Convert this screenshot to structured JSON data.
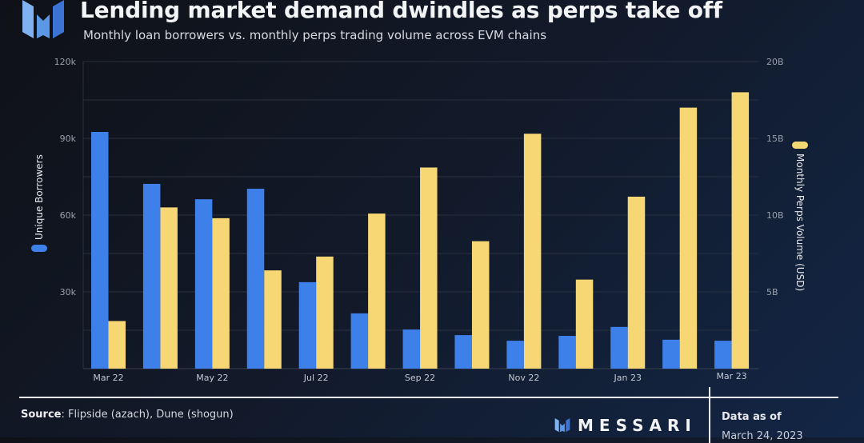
{
  "header": {
    "title": "Lending market demand dwindles as perps take off",
    "subtitle": "Monthly loan borrowers vs. monthly perps trading volume across EVM chains"
  },
  "footer": {
    "source_label": "Source",
    "source_text": ": Flipside (azach), Dune (shogun)",
    "brand": "MESSARI",
    "data_as_of_label": "Data as of",
    "data_as_of_date": "March 24, 2023"
  },
  "colors": {
    "borrowers": "#3d80ea",
    "perps": "#f7d774",
    "grid": "#2a3040",
    "tick": "#9aa1ad"
  },
  "chart_data": {
    "type": "bar",
    "title": "Lending market demand dwindles as perps take off",
    "subtitle": "Monthly loan borrowers vs. monthly perps trading volume across EVM chains",
    "categories": [
      "Mar 22",
      "Apr 22",
      "May 22",
      "Jun 22",
      "Jul 22",
      "Aug 22",
      "Sep 22",
      "Oct 22",
      "Nov 22",
      "Dec 22",
      "Jan 23",
      "Feb 23",
      "Mar 23"
    ],
    "x_tick_labels": [
      "Mar 22",
      "",
      "May 22",
      "",
      "Jul 22",
      "",
      "Sep 22",
      "",
      "Nov 22",
      "",
      "Jan 23",
      "",
      "Mar 23"
    ],
    "series": [
      {
        "name": "Unique Borrowers",
        "axis": "left",
        "values": [
          92500,
          72200,
          66200,
          70300,
          33800,
          21600,
          15300,
          13100,
          10900,
          12800,
          16300,
          11300,
          10900
        ]
      },
      {
        "name": "Monthly Perps Volume (USD)",
        "axis": "right",
        "values": [
          3.1,
          10.5,
          9.8,
          6.4,
          7.3,
          10.1,
          13.1,
          8.3,
          15.3,
          5.8,
          11.2,
          17.0,
          18.0
        ]
      }
    ],
    "left_axis": {
      "label": "Unique Borrowers",
      "range": [
        0,
        120000
      ],
      "ticks": [
        30000,
        60000,
        90000,
        120000
      ],
      "tick_labels": [
        "30k",
        "60k",
        "90k",
        "120k"
      ]
    },
    "right_axis": {
      "label": "Monthly Perps Volume (USD)",
      "unit": "billions USD",
      "range": [
        0,
        20
      ],
      "ticks": [
        5,
        10,
        15,
        20
      ],
      "tick_labels": [
        "5B",
        "10B",
        "15B",
        "20B"
      ]
    },
    "grid": true,
    "grid_step_left": 15000,
    "legend": "axis-titles (left: blue, right: yellow)"
  }
}
